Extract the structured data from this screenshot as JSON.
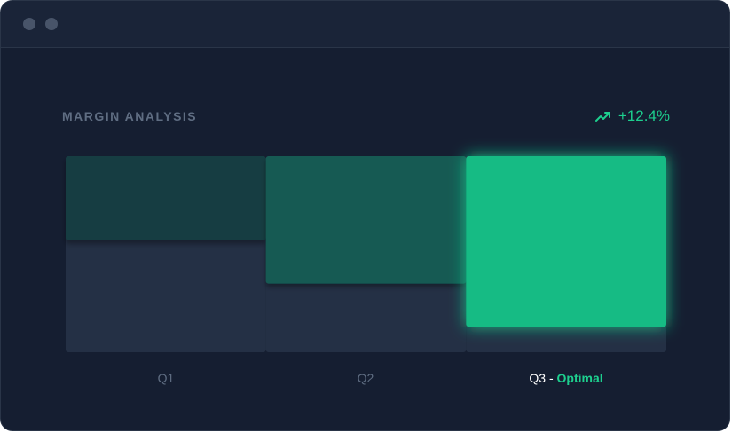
{
  "window": {
    "controls": [
      "window-dot",
      "window-dot"
    ]
  },
  "colors": {
    "background": "#151e31",
    "track": "#243045",
    "q1_fill": "#163d42",
    "q2_fill": "#155a52",
    "q3_fill": "#13bb84",
    "accent": "#1dcf8e",
    "muted_text": "#5f6d82"
  },
  "header": {
    "title": "MARGIN ANALYSIS",
    "trend_icon": "trending-up-icon",
    "trend_value": "+12.4%"
  },
  "labels": {
    "q1": "Q1",
    "q2": "Q2",
    "q3_prefix": "Q3 -",
    "q3_highlight": "Optimal"
  },
  "chart_data": {
    "type": "bar",
    "orientation": "top-anchored",
    "categories": [
      "Q1",
      "Q2",
      "Q3"
    ],
    "values": [
      0.43,
      0.65,
      0.87
    ],
    "scale": "fraction of full height",
    "highlighted": "Q3",
    "title": "MARGIN ANALYSIS",
    "xlabel": "",
    "ylabel": "",
    "ylim": [
      0,
      1
    ],
    "grid": false,
    "annotation": "+12.4%"
  }
}
